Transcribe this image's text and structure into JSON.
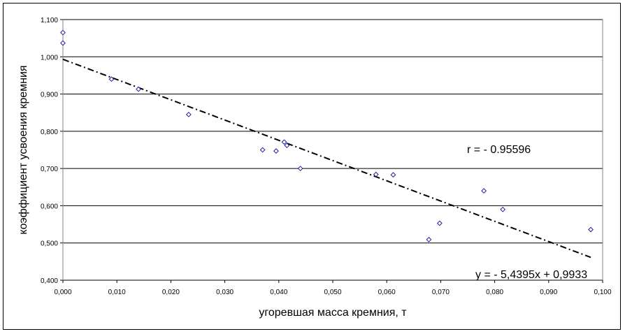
{
  "chart_data": {
    "type": "scatter",
    "xlabel": "угоревшая масса кремния, т",
    "ylabel": "коэффициент усвоения кремния",
    "xlim": [
      0,
      0.1
    ],
    "ylim": [
      0.4,
      1.1
    ],
    "x_ticks": [
      "0,000",
      "0,010",
      "0,020",
      "0,030",
      "0,040",
      "0,050",
      "0,060",
      "0,070",
      "0,080",
      "0,090",
      "0,100"
    ],
    "y_ticks": [
      "0,400",
      "0,500",
      "0,600",
      "0,700",
      "0,800",
      "0,900",
      "1,000",
      "1,100"
    ],
    "grid": "horizontal",
    "points": [
      {
        "x": 0.0,
        "y": 1.065
      },
      {
        "x": 0.0,
        "y": 1.037
      },
      {
        "x": 0.009,
        "y": 0.94
      },
      {
        "x": 0.014,
        "y": 0.913
      },
      {
        "x": 0.0233,
        "y": 0.845
      },
      {
        "x": 0.037,
        "y": 0.75
      },
      {
        "x": 0.0395,
        "y": 0.747
      },
      {
        "x": 0.041,
        "y": 0.771
      },
      {
        "x": 0.0415,
        "y": 0.762
      },
      {
        "x": 0.044,
        "y": 0.7
      },
      {
        "x": 0.058,
        "y": 0.684
      },
      {
        "x": 0.0612,
        "y": 0.683
      },
      {
        "x": 0.0678,
        "y": 0.509
      },
      {
        "x": 0.0698,
        "y": 0.553
      },
      {
        "x": 0.078,
        "y": 0.64
      },
      {
        "x": 0.0815,
        "y": 0.59
      },
      {
        "x": 0.0978,
        "y": 0.536
      }
    ],
    "trendline": {
      "slope": -5.4395,
      "intercept": 0.9933,
      "x_range": [
        0,
        0.0978
      ]
    },
    "annotations": {
      "r_text": "r = - 0.95596",
      "equation_text": "y = - 5,4395x + 0,9933"
    },
    "colors": {
      "marker": "#2020a0",
      "grid": "#000000",
      "trend": "#000000"
    }
  }
}
